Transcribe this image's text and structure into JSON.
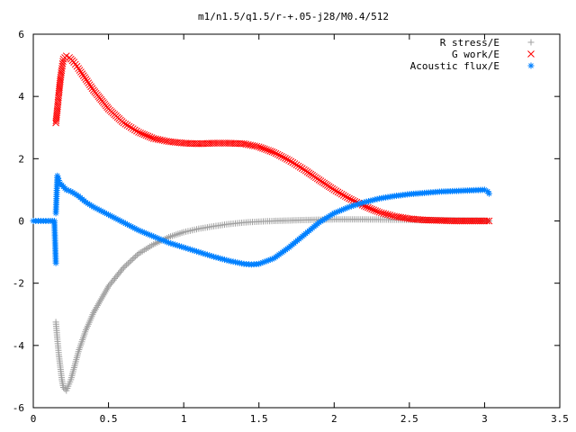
{
  "chart_data": {
    "type": "scatter",
    "title": "m1/n1.5/q1.5/r-+.05-j28/M0.4/512",
    "xlabel": "",
    "ylabel": "",
    "xlim": [
      0,
      3.5
    ],
    "ylim": [
      -6,
      6
    ],
    "xticks": [
      "0",
      "0.5",
      "1",
      "1.5",
      "2",
      "2.5",
      "3",
      "3.5"
    ],
    "yticks": [
      "-6",
      "-4",
      "-2",
      "0",
      "2",
      "4",
      "6"
    ],
    "grid": false,
    "legend_position": "top-right",
    "series": [
      {
        "name": "R stress/E",
        "color": "#a0a0a0",
        "marker": "plus",
        "x": [
          0.15,
          0.16,
          0.17,
          0.18,
          0.19,
          0.2,
          0.22,
          0.25,
          0.3,
          0.35,
          0.4,
          0.5,
          0.6,
          0.7,
          0.8,
          0.9,
          1.0,
          1.1,
          1.2,
          1.3,
          1.4,
          1.5,
          1.6,
          1.8,
          2.0,
          2.2,
          2.4,
          2.6,
          2.8,
          3.0,
          3.03
        ],
        "y": [
          -3.25,
          -3.8,
          -4.3,
          -4.7,
          -5.1,
          -5.35,
          -5.45,
          -5.1,
          -4.2,
          -3.5,
          -2.95,
          -2.1,
          -1.5,
          -1.05,
          -0.75,
          -0.52,
          -0.36,
          -0.25,
          -0.17,
          -0.1,
          -0.05,
          -0.02,
          0.0,
          0.03,
          0.05,
          0.05,
          0.04,
          0.03,
          0.02,
          0.01,
          0.0
        ]
      },
      {
        "name": "G work/E",
        "color": "#ff0000",
        "marker": "cross",
        "x": [
          0.15,
          0.16,
          0.17,
          0.18,
          0.19,
          0.2,
          0.22,
          0.24,
          0.27,
          0.3,
          0.35,
          0.4,
          0.5,
          0.6,
          0.7,
          0.8,
          0.9,
          1.0,
          1.1,
          1.2,
          1.3,
          1.4,
          1.5,
          1.6,
          1.7,
          1.8,
          1.9,
          2.0,
          2.1,
          2.2,
          2.3,
          2.4,
          2.5,
          2.6,
          2.8,
          3.0,
          3.03
        ],
        "y": [
          3.15,
          3.6,
          4.1,
          4.55,
          4.9,
          5.2,
          5.3,
          5.25,
          5.1,
          4.9,
          4.55,
          4.2,
          3.6,
          3.15,
          2.85,
          2.65,
          2.55,
          2.5,
          2.48,
          2.5,
          2.5,
          2.48,
          2.38,
          2.2,
          1.95,
          1.65,
          1.32,
          1.0,
          0.72,
          0.48,
          0.28,
          0.15,
          0.07,
          0.03,
          0.0,
          0.0,
          0.0
        ]
      },
      {
        "name": "Acoustic flux/E",
        "color": "#0080ff",
        "marker": "star",
        "x": [
          0.0,
          0.05,
          0.1,
          0.14,
          0.15,
          0.15,
          0.16,
          0.17,
          0.18,
          0.2,
          0.22,
          0.25,
          0.3,
          0.35,
          0.4,
          0.5,
          0.6,
          0.7,
          0.8,
          0.9,
          1.0,
          1.1,
          1.2,
          1.3,
          1.4,
          1.45,
          1.5,
          1.6,
          1.7,
          1.8,
          1.9,
          2.0,
          2.1,
          2.2,
          2.3,
          2.4,
          2.5,
          2.6,
          2.7,
          2.8,
          2.9,
          3.0,
          3.02,
          3.03
        ],
        "y": [
          0.0,
          0.0,
          0.0,
          0.0,
          -1.35,
          0.25,
          1.45,
          1.3,
          1.2,
          1.1,
          1.0,
          0.95,
          0.8,
          0.6,
          0.45,
          0.2,
          -0.05,
          -0.3,
          -0.5,
          -0.7,
          -0.85,
          -1.0,
          -1.15,
          -1.28,
          -1.38,
          -1.4,
          -1.38,
          -1.2,
          -0.85,
          -0.45,
          -0.05,
          0.25,
          0.45,
          0.6,
          0.72,
          0.8,
          0.86,
          0.9,
          0.94,
          0.96,
          0.98,
          1.0,
          0.95,
          0.88
        ]
      }
    ]
  }
}
